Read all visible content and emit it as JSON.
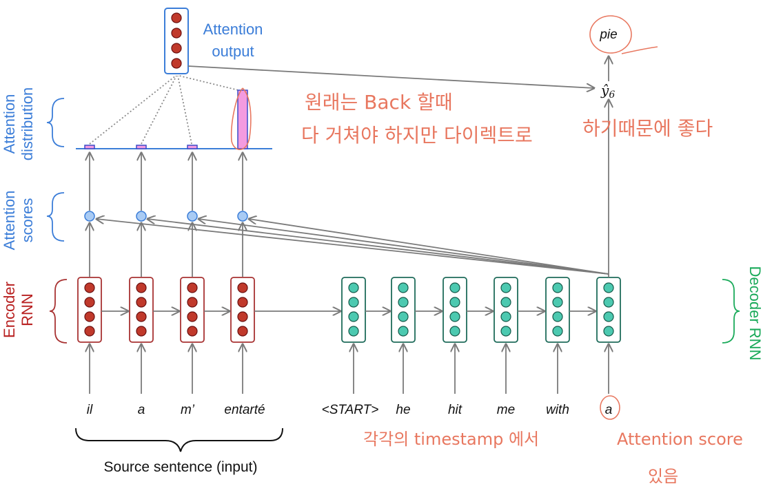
{
  "labels": {
    "attention_output": [
      "Attention",
      "output"
    ],
    "attention_distribution": [
      "Attention",
      "distribution"
    ],
    "attention_scores": [
      "Attention",
      "scores"
    ],
    "encoder_rnn": [
      "Encoder",
      "RNN"
    ],
    "decoder_rnn": "Decoder RNN",
    "source_sentence": "Source sentence (input)",
    "output_word": "pie",
    "y_hat": "ŷ",
    "y_hat_sub": "6"
  },
  "source_words": [
    "il",
    "a",
    "m’",
    "entarté"
  ],
  "target_words": [
    "<START>",
    "he",
    "hit",
    "me",
    "with",
    "a"
  ],
  "attention_weights": [
    0.05,
    0.05,
    0.05,
    0.85
  ],
  "annotations": {
    "line1": "원래는 Back 할때",
    "line2": "다 거쳐야 하지만 다이렉트로",
    "line3": "하기때문에 좋다",
    "line4": "각각의 timestamp 에서",
    "line5": "Attention score",
    "line6": "있음"
  },
  "colors": {
    "encoder": "#a83232",
    "encoder_fill": "#c0392b",
    "decoder": "#1e6b5a",
    "decoder_fill": "#4cc9b0",
    "attention_blue": "#3b7dd8",
    "decoder_green": "#1aaa5a",
    "annotation": "#e8775f",
    "bar_fill": "#f39be0"
  }
}
